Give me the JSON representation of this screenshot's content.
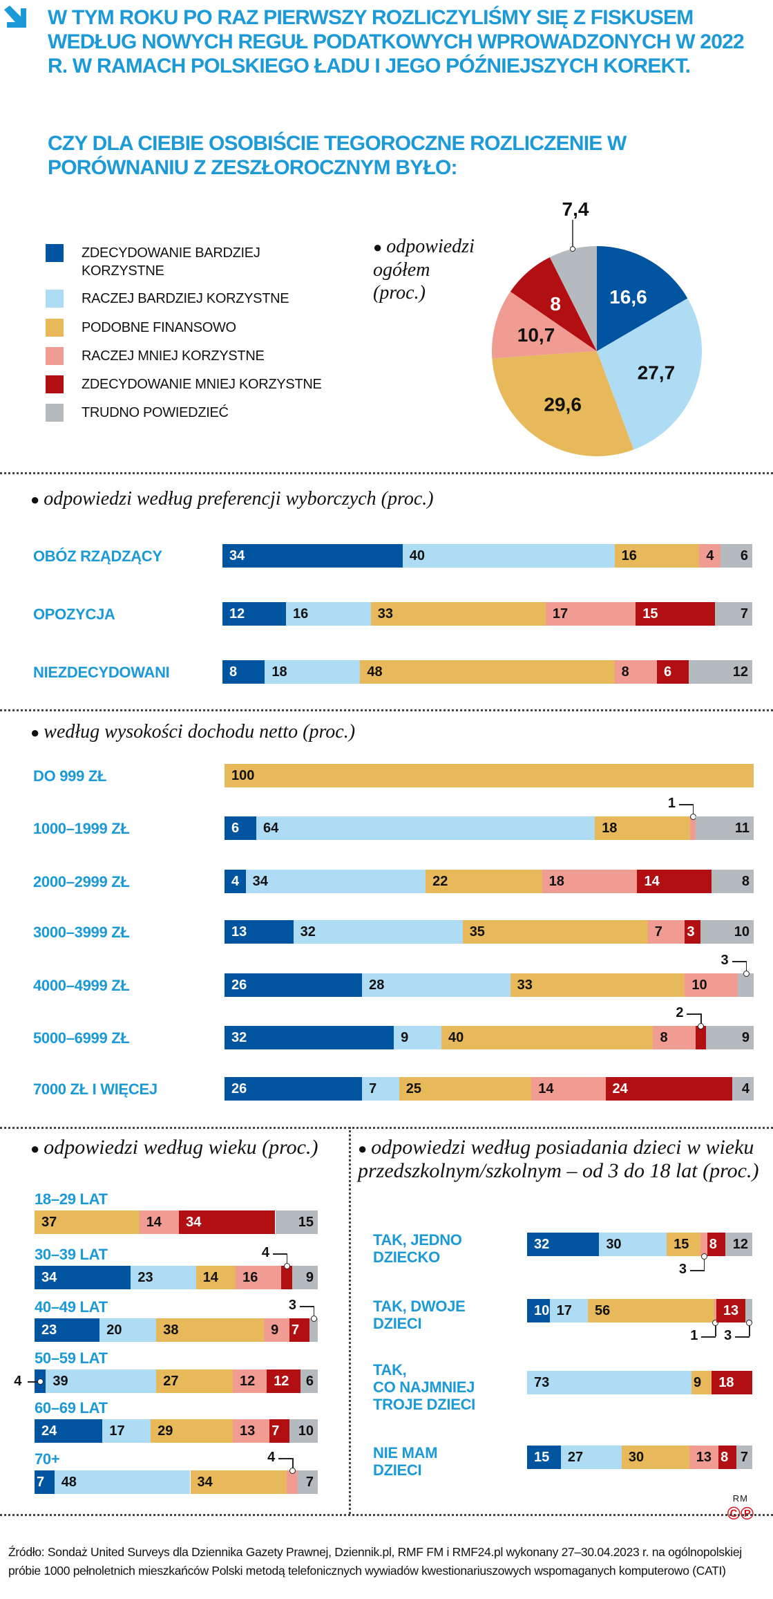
{
  "header": {
    "title": "W TYM ROKU PO RAZ PIERWSZY ROZLICZYLIŚMY SIĘ Z FISKUSEM WEDŁUG NOWYCH REGUŁ PODATKOWYCH WPROWADZONYCH W 2022 R. W RAMACH POLSKIEGO ŁADU I JEGO PÓŹNIEJSZYCH KOREKT.",
    "question": "CZY DLA CIEBIE OSOBIŚCIE TEGOROCZNE ROZLICZENIE W PORÓWNANIU Z ZESZŁOROCZNYM BYŁO:",
    "icon": "arrow-down-right-icon"
  },
  "colors": {
    "accent": "#1b9ad7",
    "series": [
      "#0054a0",
      "#aedcf5",
      "#e8b95a",
      "#f19c92",
      "#b20f12",
      "#b4babd"
    ]
  },
  "legend": [
    {
      "label": "ZDECYDOWANIE BARDZIEJ KORZYSTNE",
      "color": "#0054a0"
    },
    {
      "label": "RACZEJ BARDZIEJ KORZYSTNE",
      "color": "#aedcf5"
    },
    {
      "label": "PODOBNE FINANSOWO",
      "color": "#e8b95a"
    },
    {
      "label": "RACZEJ MNIEJ KORZYSTNE",
      "color": "#f19c92"
    },
    {
      "label": "ZDECYDOWANIE MNIEJ KORZYSTNE",
      "color": "#b20f12"
    },
    {
      "label": "TRUDNO POWIEDZIEĆ",
      "color": "#b4babd"
    }
  ],
  "chart_data": [
    {
      "type": "pie",
      "title": "odpowiedzi ogółem (proc.)",
      "labels": [
        "ZDECYDOWANIE BARDZIEJ KORZYSTNE",
        "RACZEJ BARDZIEJ KORZYSTNE",
        "PODOBNE FINANSOWO",
        "RACZEJ MNIEJ KORZYSTNE",
        "ZDECYDOWANIE MNIEJ KORZYSTNE",
        "TRUDNO POWIEDZIEĆ"
      ],
      "values": [
        16.6,
        27.7,
        29.6,
        10.7,
        8,
        7.4
      ],
      "value_labels": [
        "16,6",
        "27,7",
        "29,6",
        "10,7",
        "8",
        "7,4"
      ],
      "start": "top",
      "direction": "clockwise"
    },
    {
      "type": "bar",
      "stacked": true,
      "orientation": "horizontal",
      "title": "odpowiedzi według preferencji wyborczych (proc.)",
      "categories": [
        "OBÓZ RZĄDZĄCY",
        "OPOZYCJA",
        "NIEZDECYDOWANI"
      ],
      "rows": [
        [
          34,
          40,
          16,
          4,
          0,
          6
        ],
        [
          12,
          16,
          33,
          17,
          15,
          7
        ],
        [
          8,
          18,
          48,
          8,
          6,
          12
        ]
      ],
      "xlim": [
        0,
        100
      ],
      "callouts": []
    },
    {
      "type": "bar",
      "stacked": true,
      "orientation": "horizontal",
      "title": "według wysokości dochodu netto (proc.)",
      "categories": [
        "DO 999 ZŁ",
        "1000–1999 ZŁ",
        "2000–2999 ZŁ",
        "3000–3999 ZŁ",
        "4000–4999 ZŁ",
        "5000–6999 ZŁ",
        "7000 ZŁ I WIĘCEJ"
      ],
      "rows": [
        [
          0,
          0,
          100,
          0,
          0,
          0
        ],
        [
          6,
          64,
          18,
          1,
          0,
          11
        ],
        [
          4,
          34,
          22,
          18,
          14,
          8
        ],
        [
          13,
          32,
          35,
          7,
          3,
          10
        ],
        [
          26,
          28,
          33,
          10,
          0,
          3
        ],
        [
          32,
          9,
          40,
          8,
          2,
          9
        ],
        [
          26,
          7,
          25,
          14,
          24,
          4
        ]
      ],
      "xlim": [
        0,
        100
      ],
      "callouts": [
        {
          "row": 1,
          "series": 3,
          "side": "above"
        },
        {
          "row": 4,
          "series": 5,
          "side": "above"
        },
        {
          "row": 5,
          "series": 4,
          "side": "above"
        }
      ]
    },
    {
      "type": "bar",
      "stacked": true,
      "orientation": "horizontal",
      "title": "odpowiedzi według wieku (proc.)",
      "categories": [
        "18–29 LAT",
        "30–39 LAT",
        "40–49 LAT",
        "50–59 LAT",
        "60–69 LAT",
        "70+"
      ],
      "rows": [
        [
          0,
          0,
          37,
          14,
          34,
          15
        ],
        [
          34,
          23,
          14,
          16,
          4,
          9
        ],
        [
          23,
          20,
          38,
          9,
          7,
          3
        ],
        [
          4,
          39,
          27,
          12,
          12,
          6
        ],
        [
          24,
          17,
          29,
          13,
          7,
          10
        ],
        [
          7,
          48,
          34,
          4,
          0,
          7
        ]
      ],
      "xlim": [
        0,
        100
      ],
      "callouts": [
        {
          "row": 1,
          "series": 4,
          "side": "above"
        },
        {
          "row": 2,
          "series": 5,
          "side": "above"
        },
        {
          "row": 3,
          "series": 0,
          "side": "left"
        },
        {
          "row": 5,
          "series": 3,
          "side": "above"
        }
      ]
    },
    {
      "type": "bar",
      "stacked": true,
      "orientation": "horizontal",
      "title": "odpowiedzi według posiadania dzieci w wieku przedszkolnym/szkolnym – od 3 do 18 lat (proc.)",
      "categories": [
        "TAK, JEDNO\nDZIECKO",
        "TAK, DWOJE\nDZIECI",
        "TAK,\nCO NAJMNIEJ\nTROJE DZIECI",
        "NIE MAM\nDZIECI"
      ],
      "rows": [
        [
          32,
          30,
          15,
          3,
          8,
          12
        ],
        [
          10,
          17,
          56,
          1,
          13,
          3
        ],
        [
          0,
          73,
          9,
          0,
          18,
          0
        ],
        [
          15,
          27,
          30,
          13,
          8,
          7
        ]
      ],
      "xlim": [
        0,
        100
      ],
      "callouts": [
        {
          "row": 0,
          "series": 3,
          "side": "below"
        },
        {
          "row": 1,
          "series": 3,
          "side": "below"
        },
        {
          "row": 1,
          "series": 5,
          "side": "below"
        }
      ]
    }
  ],
  "footer": {
    "source": "Źródło: Sondaż United Surveys dla Dziennika Gazety Prawnej, Dziennik.pl, RMF FM i RMF24.pl wykonany 27–30.04.2023 r. na ogólnopolskiej próbie 1000 pełnoletnich mieszkańców Polski metodą telefonicznych wywiadów kwestionariuszowych wspomaganych komputerowo (CATI)",
    "author": "RM",
    "rights": "©℗"
  }
}
